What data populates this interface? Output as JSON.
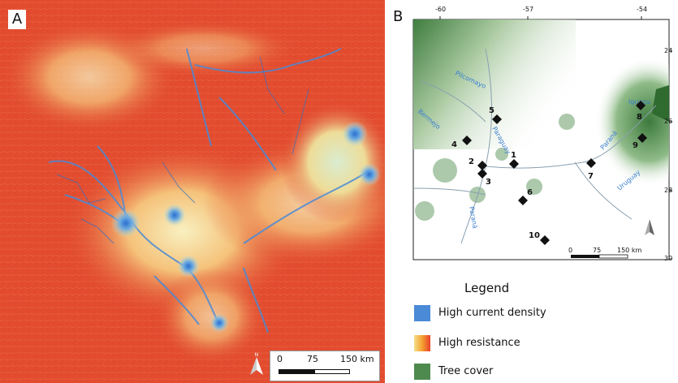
{
  "panel_a": {
    "letter": "A",
    "scale_ticks": [
      "0",
      "75",
      "150 km"
    ]
  },
  "panel_b": {
    "letter": "B",
    "top_ticks": [
      "-60",
      "-57",
      "-54"
    ],
    "right_ticks": [
      "24",
      "26",
      "28",
      "30"
    ],
    "rivers": [
      "Pilcomayo",
      "Bermejo",
      "Paraguay",
      "Paraná",
      "Paraná",
      "Iguaçu",
      "Uruguay"
    ],
    "sites": [
      "1",
      "2",
      "3",
      "4",
      "5",
      "6",
      "7",
      "8",
      "9",
      "10"
    ],
    "scale_ticks": [
      "0",
      "75",
      "150 km"
    ]
  },
  "legend": {
    "title": "Legend",
    "items": [
      {
        "label": "High current density",
        "color": "#4a8ad6"
      },
      {
        "label": "High resistance",
        "color": "#e8402a"
      },
      {
        "label": "Tree cover",
        "color": "#4e8a4e"
      }
    ]
  },
  "colors": {
    "resistance_high": "#e04a2e",
    "resistance_low": "#f3e6a8",
    "current_density": "#4a8ad6",
    "forest": "#3f7d3f",
    "river_label": "#3a7fd0"
  }
}
